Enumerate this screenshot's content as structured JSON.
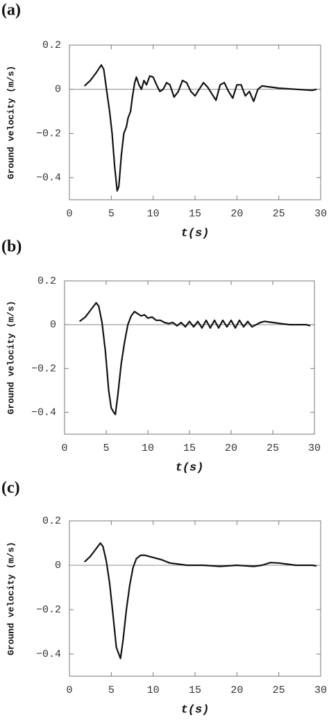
{
  "chart_data": [
    {
      "type": "line",
      "panel_label": "(a)",
      "x_label": "t(s)",
      "y_label": "Ground velocity (m/s)",
      "xlim": [
        0,
        30
      ],
      "xticks": [
        0,
        5,
        10,
        15,
        20,
        25,
        30
      ],
      "ylim": [
        -0.5,
        0.2
      ],
      "yticks": [
        0.2,
        0,
        {
          "value": -0.2,
          "label": "−0.2"
        },
        {
          "value": -0.4,
          "label": "−0.4"
        }
      ],
      "zero_line": true,
      "color": "#111111",
      "x": [
        1.8,
        2.5,
        3.2,
        3.8,
        4.1,
        4.5,
        4.8,
        5.1,
        5.4,
        5.7,
        5.9,
        6.2,
        6.5,
        6.8,
        7.0,
        7.3,
        7.5,
        7.8,
        8.0,
        8.3,
        8.6,
        8.9,
        9.2,
        9.6,
        10.0,
        10.4,
        10.8,
        11.2,
        11.6,
        12.0,
        12.5,
        13.0,
        13.5,
        14.0,
        14.5,
        15.0,
        15.5,
        16.0,
        16.5,
        17.0,
        17.5,
        18.0,
        18.5,
        19.0,
        19.5,
        20.0,
        20.5,
        21.0,
        21.5,
        22.0,
        22.5,
        23.0,
        24.0,
        25.0,
        27.0,
        29.0,
        29.5
      ],
      "values": [
        0.015,
        0.04,
        0.075,
        0.11,
        0.09,
        -0.02,
        -0.1,
        -0.2,
        -0.35,
        -0.46,
        -0.44,
        -0.3,
        -0.2,
        -0.17,
        -0.13,
        -0.1,
        -0.04,
        0.03,
        0.055,
        0.02,
        0.0,
        0.04,
        0.02,
        0.06,
        0.055,
        0.02,
        -0.01,
        0.0,
        0.03,
        0.02,
        -0.035,
        -0.01,
        0.04,
        0.03,
        -0.01,
        -0.03,
        0.0,
        0.03,
        0.01,
        -0.02,
        -0.05,
        0.02,
        0.03,
        -0.01,
        -0.04,
        0.02,
        0.02,
        -0.03,
        -0.01,
        -0.055,
        0.0,
        0.015,
        0.01,
        0.005,
        0.0,
        -0.005,
        0.0
      ]
    },
    {
      "type": "line",
      "panel_label": "(b)",
      "x_label": "t(s)",
      "y_label": "Ground velocity (m/s)",
      "xlim": [
        0,
        30
      ],
      "xticks": [
        0,
        5,
        10,
        15,
        20,
        25,
        30
      ],
      "ylim": [
        -0.5,
        0.2
      ],
      "yticks": [
        0.2,
        0,
        {
          "value": -0.2,
          "label": "−0.2"
        },
        {
          "value": -0.4,
          "label": "−0.4"
        }
      ],
      "zero_line": true,
      "color": "#111111",
      "x": [
        1.8,
        2.5,
        3.2,
        3.8,
        4.1,
        4.5,
        4.9,
        5.3,
        5.6,
        5.9,
        6.1,
        6.4,
        6.8,
        7.2,
        7.6,
        8.0,
        8.4,
        8.8,
        9.2,
        9.6,
        10.0,
        10.5,
        11.0,
        11.5,
        12.0,
        12.5,
        13.0,
        13.5,
        14.0,
        14.5,
        15.0,
        15.5,
        16.0,
        16.5,
        17.0,
        17.5,
        18.0,
        18.5,
        19.0,
        19.5,
        20.0,
        20.5,
        21.0,
        21.5,
        22.0,
        22.5,
        23.0,
        23.5,
        24.0,
        25.0,
        26.0,
        27.0,
        29.0,
        29.5
      ],
      "values": [
        0.015,
        0.035,
        0.07,
        0.1,
        0.085,
        0.01,
        -0.12,
        -0.3,
        -0.38,
        -0.4,
        -0.41,
        -0.32,
        -0.18,
        -0.08,
        0.0,
        0.04,
        0.06,
        0.05,
        0.04,
        0.045,
        0.03,
        0.035,
        0.02,
        0.02,
        0.01,
        0.005,
        0.01,
        -0.005,
        0.01,
        -0.01,
        0.015,
        -0.01,
        0.015,
        -0.015,
        0.02,
        -0.015,
        0.02,
        -0.015,
        0.02,
        -0.01,
        0.02,
        -0.015,
        0.02,
        -0.01,
        0.015,
        -0.01,
        0.0,
        0.01,
        0.015,
        0.01,
        0.005,
        0.0,
        0.0,
        -0.005
      ]
    },
    {
      "type": "line",
      "panel_label": "(c)",
      "x_label": "t(s)",
      "y_label": "Ground velocity (m/s)",
      "xlim": [
        0,
        30
      ],
      "xticks": [
        0,
        5,
        10,
        15,
        20,
        25,
        30
      ],
      "ylim": [
        -0.5,
        0.2
      ],
      "yticks": [
        0.2,
        0,
        {
          "value": -0.2,
          "label": "−0.2"
        },
        {
          "value": -0.4,
          "label": "−0.4"
        }
      ],
      "zero_line": true,
      "color": "#111111",
      "x": [
        1.8,
        2.5,
        3.2,
        3.7,
        4.0,
        4.4,
        4.8,
        5.2,
        5.6,
        5.9,
        6.1,
        6.4,
        6.8,
        7.2,
        7.6,
        8.0,
        8.5,
        9.0,
        10.0,
        11.0,
        12.0,
        13.0,
        14.0,
        16.0,
        18.0,
        20.0,
        22.0,
        23.0,
        24.0,
        25.0,
        26.0,
        27.0,
        29.0,
        29.5
      ],
      "values": [
        0.015,
        0.04,
        0.075,
        0.1,
        0.085,
        0.02,
        -0.08,
        -0.22,
        -0.37,
        -0.4,
        -0.42,
        -0.34,
        -0.2,
        -0.09,
        -0.01,
        0.03,
        0.045,
        0.045,
        0.035,
        0.025,
        0.01,
        0.005,
        0.0,
        0.0,
        -0.005,
        0.0,
        -0.005,
        0.0,
        0.012,
        0.01,
        0.005,
        0.0,
        0.0,
        -0.003
      ]
    }
  ]
}
